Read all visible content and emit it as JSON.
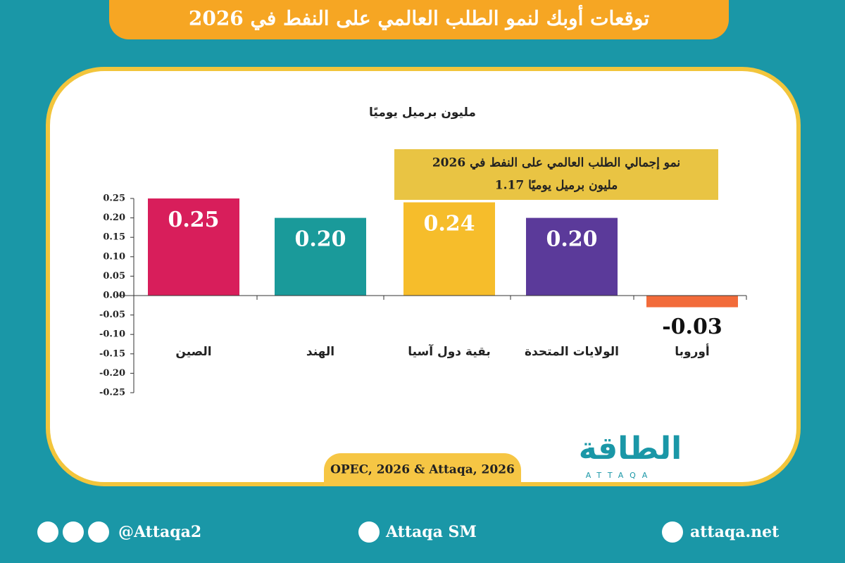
{
  "chart_data": {
    "type": "bar",
    "title": "توقعات أوبك لنمو الطلب العالمي على النفط في 2026",
    "subtitle": "مليون برميل يوميًا",
    "annotation": [
      "نمو إجمالي الطلب العالمي على النفط في 2026",
      "1.17  مليون برميل يوميًا"
    ],
    "categories": [
      "الصين",
      "الهند",
      "بقية دول آسيا",
      "الولايات المتحدة",
      "أوروبا"
    ],
    "values": [
      0.25,
      0.2,
      0.24,
      0.2,
      -0.03
    ],
    "value_labels": [
      "0.25",
      "0.20",
      "0.24",
      "0.20",
      "-0.03"
    ],
    "colors": [
      "#d81e5b",
      "#1a9a9a",
      "#f6bd2b",
      "#5b3a9a",
      "#f26b3a"
    ],
    "ylim": [
      -0.25,
      0.25
    ],
    "yticks": [
      {
        "value": 0.25,
        "label": "0.25"
      },
      {
        "value": 0.2,
        "label": "0.20"
      },
      {
        "value": 0.15,
        "label": "0.15"
      },
      {
        "value": 0.1,
        "label": "0.10"
      },
      {
        "value": 0.05,
        "label": "0.05"
      },
      {
        "value": 0,
        "label": "0.00"
      },
      {
        "value": -0.05,
        "label": "-0.05"
      },
      {
        "value": -0.1,
        "label": "-0.10"
      },
      {
        "value": -0.15,
        "label": "-0.15"
      },
      {
        "value": -0.2,
        "label": "-0.20"
      },
      {
        "value": -0.25,
        "label": "-0.25"
      }
    ],
    "source": "OPEC, 2026 & Attaqa, 2026"
  },
  "logo": {
    "name": "الطاقة",
    "latin": "ATTAQA"
  },
  "footer": {
    "social": "@Attaqa2",
    "youtube": "Attaqa SM",
    "web": "attaqa.net"
  }
}
